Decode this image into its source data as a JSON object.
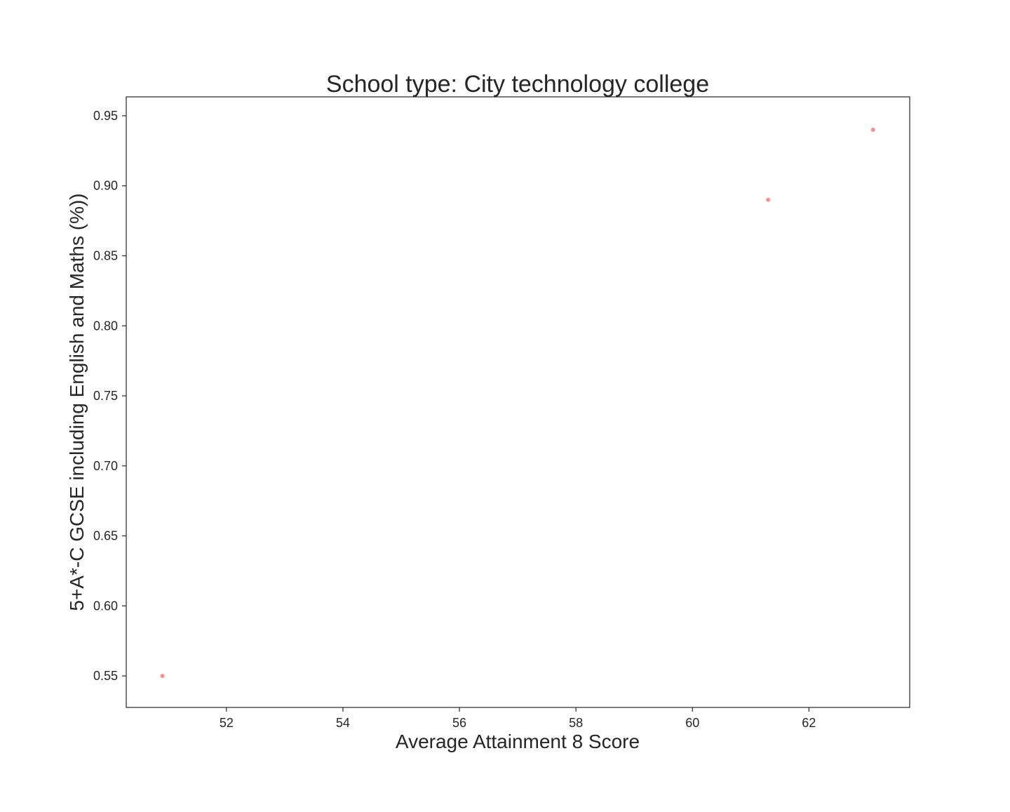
{
  "chart_data": {
    "type": "scatter",
    "title": "School type: City technology college",
    "xlabel": "Average Attainment 8 Score",
    "ylabel": "5+A*-C GCSE including English and Maths (%))",
    "xlim": [
      50.28,
      63.73
    ],
    "ylim": [
      0.5275,
      0.9635
    ],
    "x_ticks": [
      52,
      54,
      56,
      58,
      60,
      62
    ],
    "y_ticks": [
      0.55,
      0.6,
      0.65,
      0.7,
      0.75,
      0.8,
      0.85,
      0.9,
      0.95
    ],
    "x_tick_labels": [
      "52",
      "54",
      "56",
      "58",
      "60",
      "62"
    ],
    "y_tick_labels": [
      "0.55",
      "0.60",
      "0.65",
      "0.70",
      "0.75",
      "0.80",
      "0.85",
      "0.90",
      "0.95"
    ],
    "grid": false,
    "legend": "none",
    "marker_color": "#f08080",
    "points": [
      {
        "x": 50.9,
        "y": 0.55
      },
      {
        "x": 61.3,
        "y": 0.89
      },
      {
        "x": 63.1,
        "y": 0.94
      }
    ]
  }
}
